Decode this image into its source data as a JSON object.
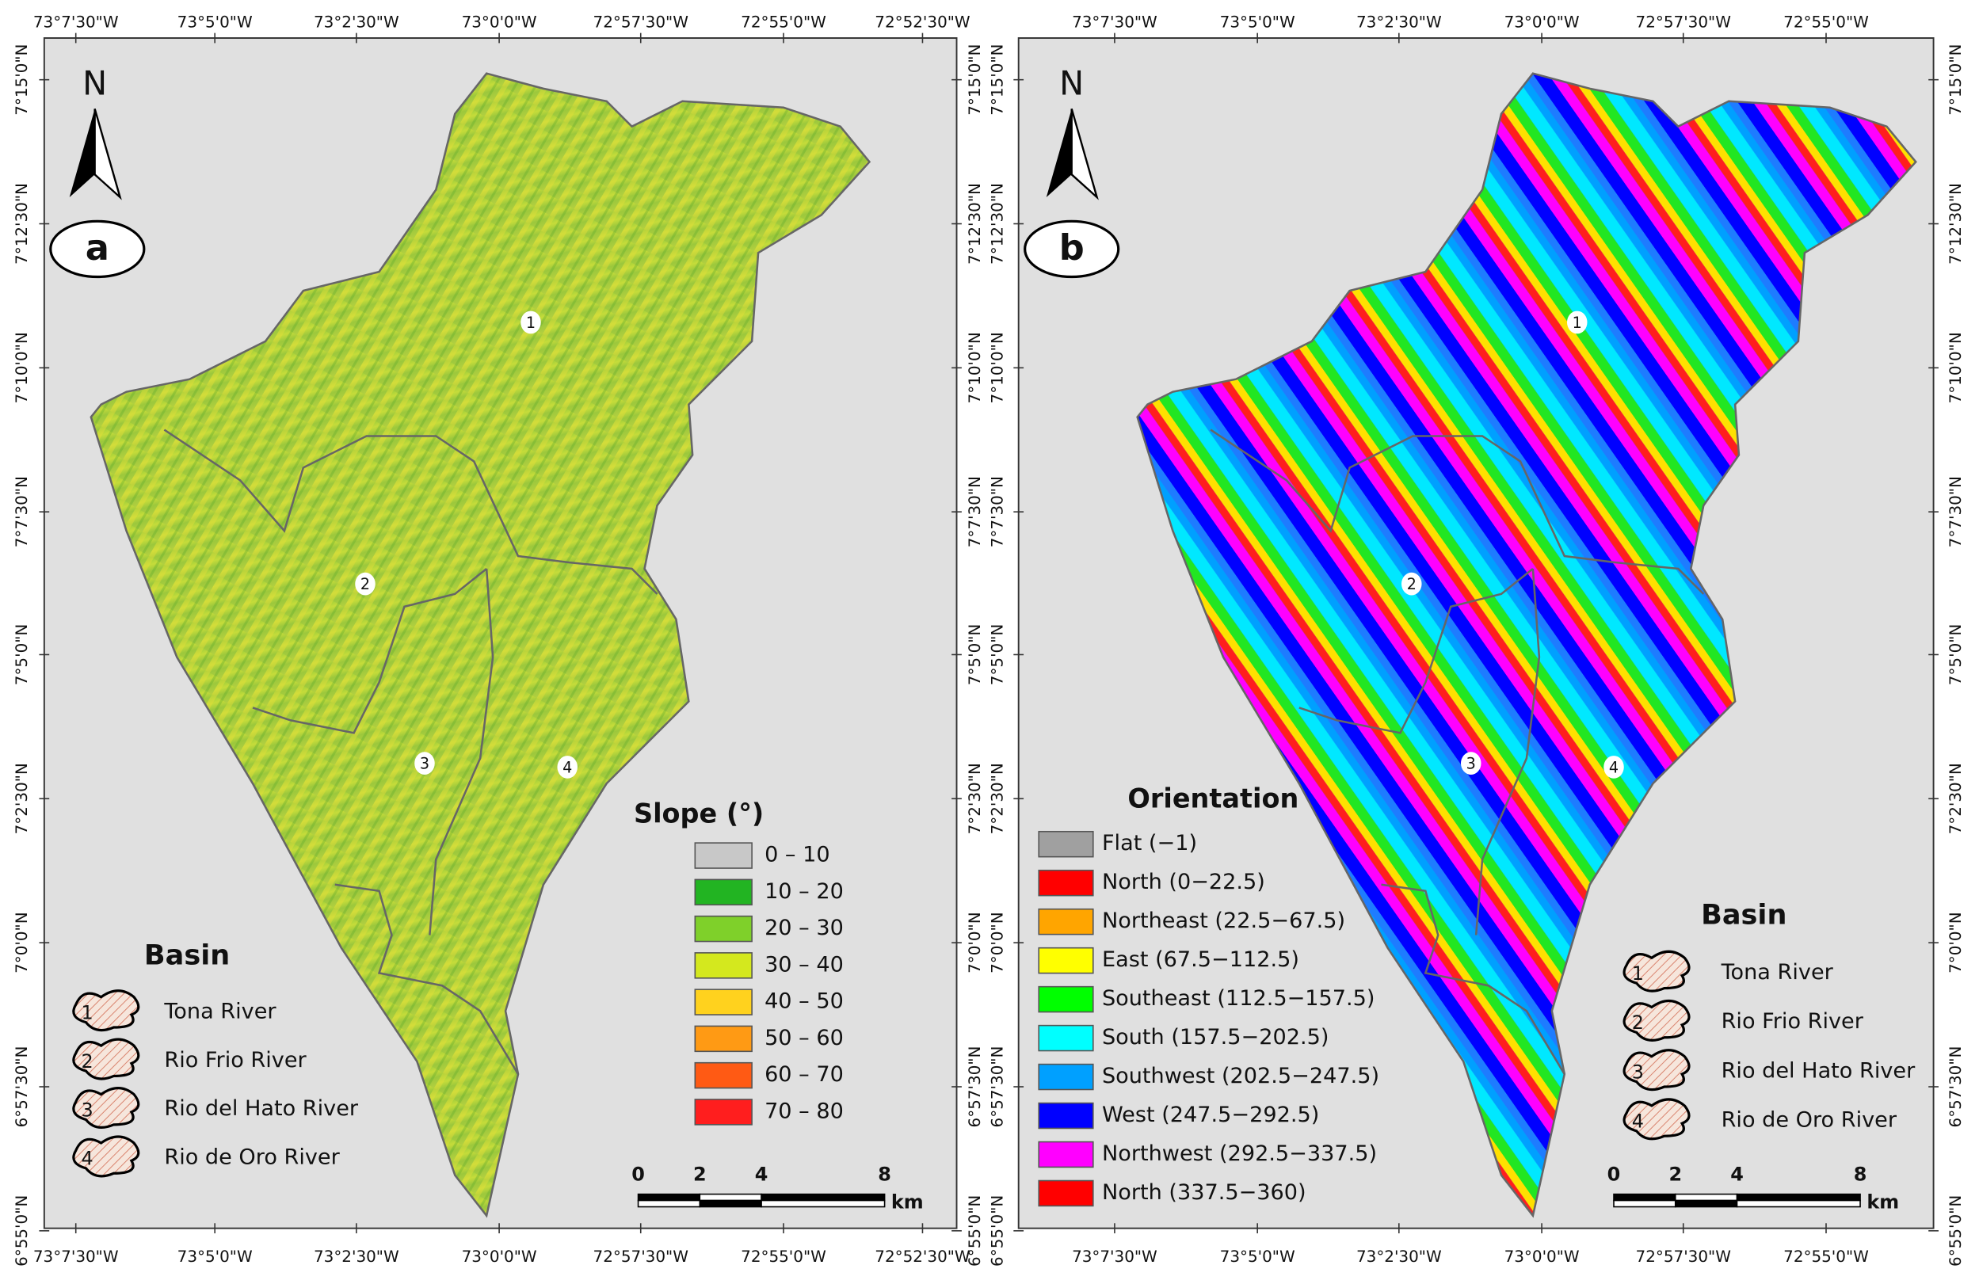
{
  "panels": [
    {
      "letter": "a",
      "north": "N",
      "lon_labels": [
        "73°7'30\"W",
        "73°5'0\"W",
        "73°2'30\"W",
        "73°0'0\"W",
        "72°57'30\"W",
        "72°55'0\"W",
        "72°52'30\"W"
      ],
      "lat_labels": [
        "7°15'0\"N",
        "7°12'30\"N",
        "7°10'0\"N",
        "7°7'30\"N",
        "7°5'0\"N",
        "7°2'30\"N",
        "7°0'0\"N",
        "6°57'30\"N",
        "6°55'0\"N"
      ],
      "basin_markers": [
        "1",
        "2",
        "3",
        "4"
      ],
      "basin_legend": {
        "title": "Basin",
        "items": [
          {
            "number": "1",
            "label": "Tona River"
          },
          {
            "number": "2",
            "label": "Rio Frio River"
          },
          {
            "number": "3",
            "label": "Rio del Hato River"
          },
          {
            "number": "4",
            "label": "Rio de Oro River"
          }
        ]
      },
      "class_legend": {
        "title": "Slope (°)",
        "items": [
          {
            "label": "0 – 10",
            "color": "#c8c8c8"
          },
          {
            "label": "10 – 20",
            "color": "#22b422"
          },
          {
            "label": "20 – 30",
            "color": "#7fd02a"
          },
          {
            "label": "30 – 40",
            "color": "#d4e81e"
          },
          {
            "label": "40 – 50",
            "color": "#ffd21e"
          },
          {
            "label": "50 – 60",
            "color": "#ff9a14"
          },
          {
            "label": "60 – 70",
            "color": "#ff5a14"
          },
          {
            "label": "70 – 80",
            "color": "#ff1e1e"
          }
        ]
      },
      "scale_bar": {
        "ticks": [
          "0",
          "2",
          "4",
          "8"
        ],
        "unit": "km"
      }
    },
    {
      "letter": "b",
      "north": "N",
      "lon_labels": [
        "73°7'30\"W",
        "73°5'0\"W",
        "73°2'30\"W",
        "73°0'0\"W",
        "72°57'30\"W",
        "72°55'0\"W"
      ],
      "lat_labels": [
        "7°15'0\"N",
        "7°12'30\"N",
        "7°10'0\"N",
        "7°7'30\"N",
        "7°5'0\"N",
        "7°2'30\"N",
        "7°0'0\"N",
        "6°57'30\"N",
        "6°55'0\"N"
      ],
      "basin_markers": [
        "1",
        "2",
        "3",
        "4"
      ],
      "basin_legend": {
        "title": "Basin",
        "items": [
          {
            "number": "1",
            "label": "Tona River"
          },
          {
            "number": "2",
            "label": "Rio Frio River"
          },
          {
            "number": "3",
            "label": "Rio del Hato River"
          },
          {
            "number": "4",
            "label": "Rio de Oro River"
          }
        ]
      },
      "class_legend": {
        "title": "Orientation",
        "items": [
          {
            "label": "Flat (−1)",
            "color": "#a0a0a0"
          },
          {
            "label": "North (0−22.5)",
            "color": "#ff0000"
          },
          {
            "label": "Northeast (22.5−67.5)",
            "color": "#ffa500"
          },
          {
            "label": "East (67.5−112.5)",
            "color": "#ffff00"
          },
          {
            "label": "Southeast (112.5−157.5)",
            "color": "#00ff00"
          },
          {
            "label": "South (157.5−202.5)",
            "color": "#00ffff"
          },
          {
            "label": "Southwest (202.5−247.5)",
            "color": "#00a0ff"
          },
          {
            "label": "West (247.5−292.5)",
            "color": "#0000ff"
          },
          {
            "label": "Northwest (292.5−337.5)",
            "color": "#ff00ff"
          },
          {
            "label": "North (337.5−360)",
            "color": "#ff0000"
          }
        ]
      },
      "scale_bar": {
        "ticks": [
          "0",
          "2",
          "4",
          "8"
        ],
        "unit": "km"
      }
    }
  ]
}
